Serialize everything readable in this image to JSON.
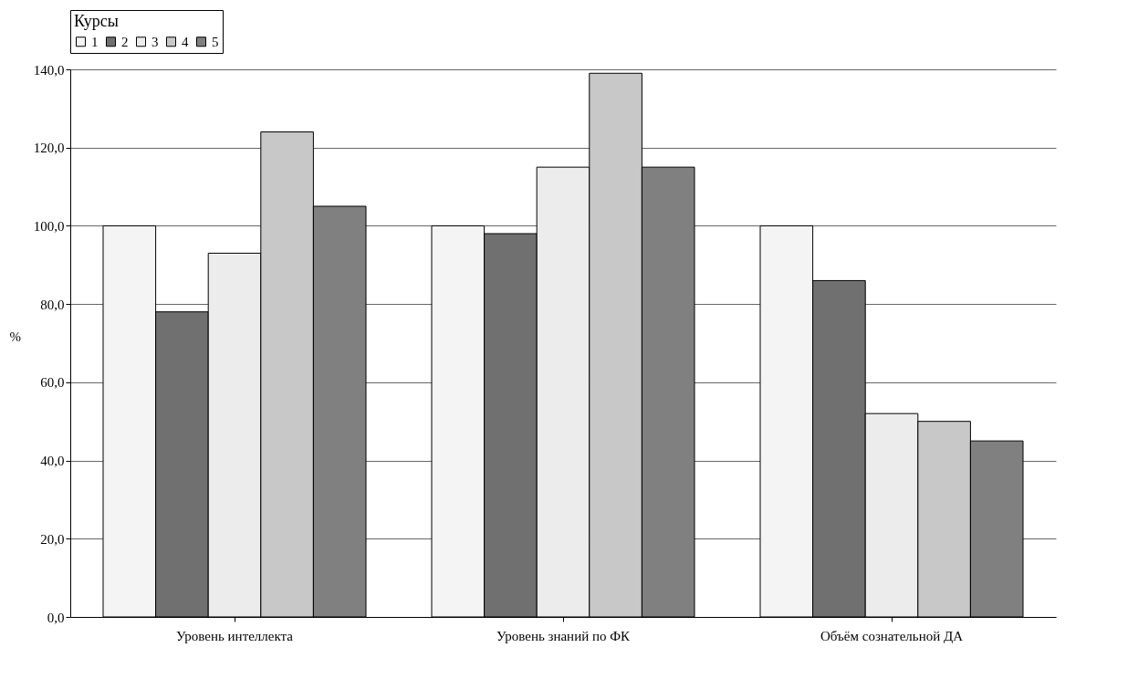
{
  "chart_data": {
    "type": "bar",
    "ylabel": "%",
    "legend_title": "Курсы",
    "legend": "top",
    "grid": "y",
    "categories": [
      "Уровень интеллекта",
      "Уровень знаний по ФК",
      "Объём сознательной ДА"
    ],
    "ylim": [
      0,
      140
    ],
    "yticks": [
      {
        "value": 0,
        "label": "0,0"
      },
      {
        "value": 20,
        "label": "20,0"
      },
      {
        "value": 40,
        "label": "40,0"
      },
      {
        "value": 60,
        "label": "60,0"
      },
      {
        "value": 80,
        "label": "80,0"
      },
      {
        "value": 100,
        "label": "100,0"
      },
      {
        "value": 120,
        "label": "120,0"
      },
      {
        "value": 140,
        "label": "140,0"
      }
    ],
    "series": [
      {
        "name": "1",
        "color": "#f4f4f4",
        "values": [
          100,
          100,
          100
        ]
      },
      {
        "name": "2",
        "color": "#707070",
        "values": [
          78,
          98,
          86
        ]
      },
      {
        "name": "3",
        "color": "#ececec",
        "values": [
          93,
          115,
          52
        ]
      },
      {
        "name": "4",
        "color": "#c8c8c8",
        "values": [
          124,
          139,
          50
        ]
      },
      {
        "name": "5",
        "color": "#808080",
        "values": [
          105,
          115,
          45
        ]
      }
    ]
  }
}
